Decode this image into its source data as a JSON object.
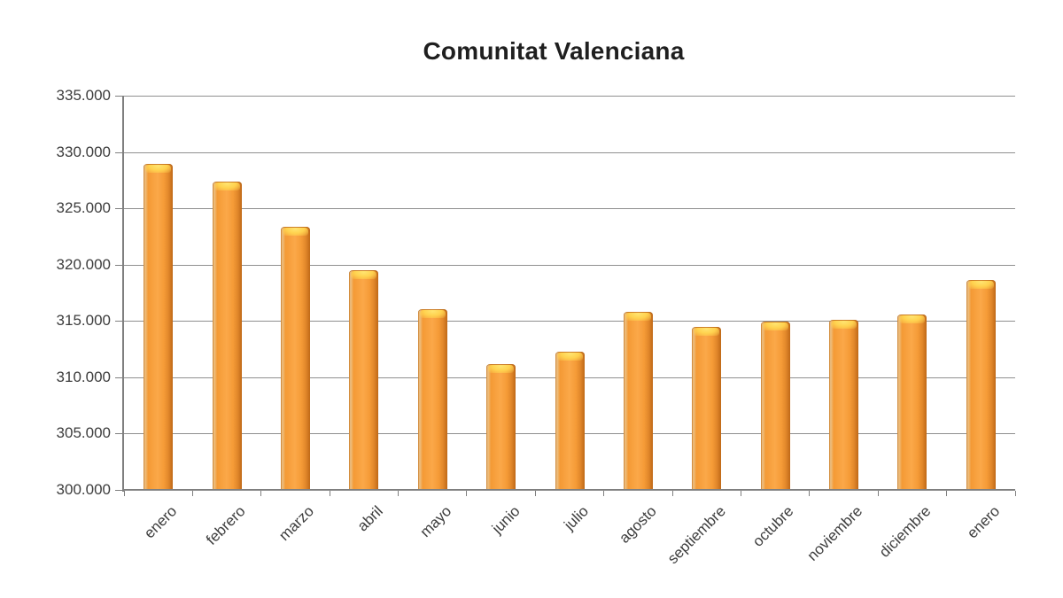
{
  "header": {
    "title": "Comunitat Valenciana"
  },
  "chart_data": {
    "type": "bar",
    "title": "Comunitat Valenciana",
    "categories": [
      "enero",
      "febrero",
      "marzo",
      "abril",
      "mayo",
      "junio",
      "julio",
      "agosto",
      "septiembre",
      "octubre",
      "noviembre",
      "diciembre",
      "enero"
    ],
    "values": [
      328900,
      327300,
      323300,
      319400,
      316000,
      311100,
      312200,
      315700,
      314400,
      314900,
      315000,
      315500,
      318600
    ],
    "xlabel": "",
    "ylabel": "",
    "ylim": [
      300000,
      335000
    ],
    "grid": true,
    "legend": false,
    "yticks": [
      {
        "value": 335000,
        "label": "335.000"
      },
      {
        "value": 330000,
        "label": "330.000"
      },
      {
        "value": 325000,
        "label": "325.000"
      },
      {
        "value": 320000,
        "label": "320.000"
      },
      {
        "value": 315000,
        "label": "315.000"
      },
      {
        "value": 310000,
        "label": "310.000"
      },
      {
        "value": 305000,
        "label": "305.000"
      },
      {
        "value": 300000,
        "label": "300.000"
      }
    ],
    "colors": {
      "background": "#FFFFFF",
      "bar_main": "#F59B35",
      "bar_highlight": "#FFD24F",
      "bar_edge_dark": "#BF6917",
      "gridline": "#8F8F8F",
      "axis": "#7F7F7F",
      "tick_text": "#3D3D3D",
      "title_text": "#1F1F1F"
    }
  }
}
